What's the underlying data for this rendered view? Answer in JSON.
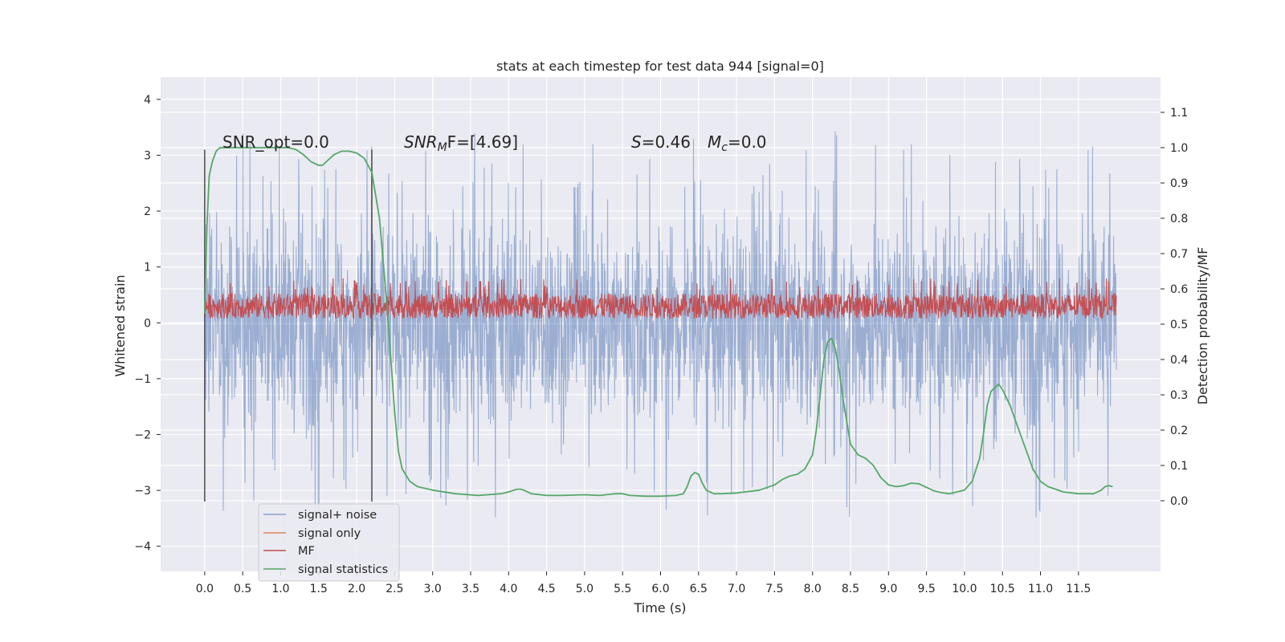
{
  "chart_data": {
    "type": "line",
    "title": "stats at each timestep for test data 944 [signal=0]",
    "xlabel": "Time (s)",
    "ylabel": "Whitened strain",
    "ylabel_right": "Detection probability/MF",
    "xlim": [
      -0.58,
      12.58
    ],
    "ylim": [
      -4.45,
      4.4
    ],
    "ylim_right": [
      -0.2,
      1.2
    ],
    "x_ticks": [
      "0.0",
      "0.5",
      "1.0",
      "1.5",
      "2.0",
      "2.5",
      "3.0",
      "3.5",
      "4.0",
      "4.5",
      "5.0",
      "5.5",
      "6.0",
      "6.5",
      "7.0",
      "7.5",
      "8.0",
      "8.5",
      "9.0",
      "9.5",
      "10.0",
      "10.5",
      "11.0",
      "11.5"
    ],
    "y_ticks_left": [
      "4",
      "3",
      "2",
      "1",
      "0",
      "−1",
      "−2",
      "−3",
      "−4"
    ],
    "y_ticks_right": [
      "1.1",
      "1.0",
      "0.9",
      "0.8",
      "0.7",
      "0.6",
      "0.5",
      "0.4",
      "0.3",
      "0.2",
      "0.1",
      "0.0"
    ],
    "grid": true,
    "legend_position": "lower-left",
    "colors": {
      "background": "#eaeaf2",
      "grid": "#ffffff",
      "signal_noise": "#4c72b0",
      "signal_only": "#dd8452",
      "mf": "#c44e52",
      "signal_statistics": "#55a868",
      "vlines": "#555555"
    },
    "annotations": {
      "snr_opt": "SNR_opt=0.0",
      "snr_mf": "SNR",
      "snr_mf_sub": "M",
      "snr_mf_rest": "F=[4.69]",
      "s_label": "S",
      "s_value": "=0.46",
      "mc_label": "M",
      "mc_sub": "c",
      "mc_value": "=0.0"
    },
    "vertical_lines_x": [
      0.0,
      2.2
    ],
    "vertical_lines_yrange": [
      -3.2,
      3.1
    ],
    "series": [
      {
        "name": "signal+ noise",
        "description_range": "noise between about -2.5 and 2.5 with spikes to 4 and -4",
        "x_range": [
          0.0,
          12.0
        ],
        "amplitude": 2.3
      },
      {
        "name": "signal only",
        "values": []
      },
      {
        "name": "MF",
        "x_range": [
          0.0,
          12.0
        ],
        "y_range_left": [
          0.05,
          0.6
        ]
      },
      {
        "name": "signal statistics",
        "axis": "right",
        "x": [
          0.0,
          0.03,
          0.06,
          0.1,
          0.15,
          0.2,
          0.3,
          0.5,
          0.8,
          1.0,
          1.1,
          1.2,
          1.3,
          1.4,
          1.5,
          1.55,
          1.6,
          1.7,
          1.8,
          1.9,
          2.0,
          2.1,
          2.2,
          2.3,
          2.4,
          2.45,
          2.5,
          2.55,
          2.6,
          2.7,
          2.8,
          3.0,
          3.3,
          3.6,
          3.9,
          4.0,
          4.1,
          4.15,
          4.2,
          4.3,
          4.5,
          4.7,
          5.0,
          5.2,
          5.4,
          5.5,
          5.6,
          5.8,
          6.0,
          6.2,
          6.3,
          6.35,
          6.4,
          6.45,
          6.5,
          6.55,
          6.6,
          6.7,
          6.8,
          7.0,
          7.3,
          7.5,
          7.6,
          7.7,
          7.8,
          7.9,
          8.0,
          8.05,
          8.1,
          8.15,
          8.2,
          8.25,
          8.3,
          8.35,
          8.4,
          8.5,
          8.6,
          8.7,
          8.8,
          8.9,
          9.0,
          9.1,
          9.2,
          9.3,
          9.4,
          9.5,
          9.6,
          9.7,
          9.8,
          10.0,
          10.1,
          10.2,
          10.25,
          10.3,
          10.35,
          10.4,
          10.45,
          10.5,
          10.6,
          10.7,
          10.8,
          10.9,
          11.0,
          11.1,
          11.3,
          11.5,
          11.7,
          11.8,
          11.85,
          11.9,
          11.95
        ],
        "values": [
          0.53,
          0.78,
          0.92,
          0.96,
          0.99,
          1.0,
          1.0,
          1.0,
          1.0,
          1.0,
          1.0,
          0.995,
          0.98,
          0.96,
          0.95,
          0.95,
          0.96,
          0.98,
          0.99,
          0.99,
          0.985,
          0.97,
          0.93,
          0.8,
          0.55,
          0.4,
          0.25,
          0.14,
          0.09,
          0.055,
          0.04,
          0.03,
          0.02,
          0.015,
          0.02,
          0.025,
          0.032,
          0.033,
          0.03,
          0.02,
          0.015,
          0.015,
          0.017,
          0.015,
          0.02,
          0.02,
          0.015,
          0.013,
          0.013,
          0.015,
          0.02,
          0.04,
          0.07,
          0.08,
          0.075,
          0.05,
          0.03,
          0.02,
          0.02,
          0.022,
          0.03,
          0.045,
          0.06,
          0.07,
          0.075,
          0.09,
          0.13,
          0.2,
          0.3,
          0.4,
          0.45,
          0.46,
          0.43,
          0.37,
          0.29,
          0.16,
          0.13,
          0.12,
          0.1,
          0.065,
          0.045,
          0.04,
          0.043,
          0.05,
          0.048,
          0.038,
          0.028,
          0.023,
          0.02,
          0.03,
          0.055,
          0.12,
          0.19,
          0.27,
          0.31,
          0.32,
          0.33,
          0.315,
          0.27,
          0.21,
          0.15,
          0.09,
          0.055,
          0.04,
          0.025,
          0.02,
          0.02,
          0.03,
          0.04,
          0.043,
          0.04
        ]
      }
    ]
  }
}
